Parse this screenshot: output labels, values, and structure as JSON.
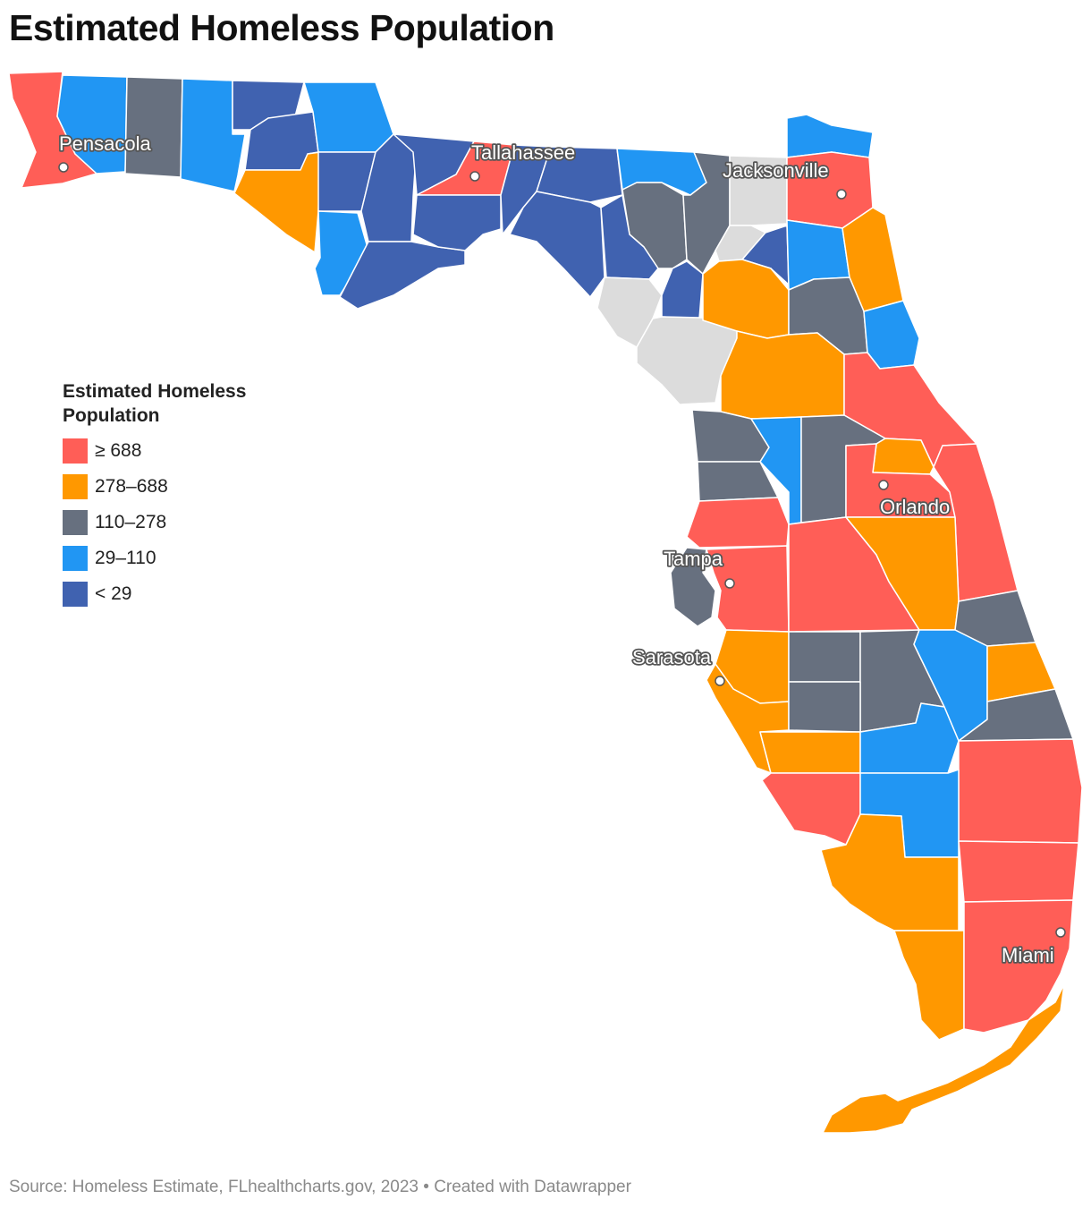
{
  "title": "Estimated Homeless Population",
  "legend": {
    "title": "Estimated Homeless Population",
    "bins": [
      {
        "label": "≥ 688",
        "color": "#ff5e57"
      },
      {
        "label": "278–688",
        "color": "#ff9800"
      },
      {
        "label": "110–278",
        "color": "#67707f"
      },
      {
        "label": "29–110",
        "color": "#2196f3"
      },
      {
        "label": "< 29",
        "color": "#4062b0"
      }
    ],
    "no_data_color": "#dcdcdc"
  },
  "cities": [
    {
      "name": "Pensacola"
    },
    {
      "name": "Tallahassee"
    },
    {
      "name": "Jacksonville"
    },
    {
      "name": "Orlando"
    },
    {
      "name": "Tampa"
    },
    {
      "name": "Sarasota"
    },
    {
      "name": "Miami"
    }
  ],
  "source": "Source: Homeless Estimate, FLhealthcharts.gov, 2023 • Created with Datawrapper"
}
